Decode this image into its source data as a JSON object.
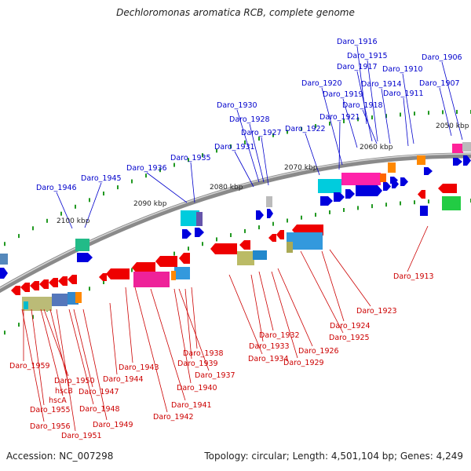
{
  "title": "Dechloromonas aromatica RCB, complete genome",
  "footer": {
    "accession": "Accession: NC_007298",
    "summary": "Topology: circular; Length: 4,501,104 bp; Genes: 4,249"
  },
  "colors": {
    "top_label": "#0000cc",
    "bottom_label": "#cc0000",
    "forward": "#0000dd",
    "reverse": "#ee0000",
    "tick": "#229922",
    "backbone": "#888888"
  },
  "scale": [
    {
      "text": "2050 kbp"
    },
    {
      "text": "2060 kbp"
    },
    {
      "text": "2070 kbp"
    },
    {
      "text": "2080 kbp"
    },
    {
      "text": "2090 kbp"
    },
    {
      "text": "2100 kbp"
    }
  ],
  "top_labels": [
    {
      "text": "Daro_1916"
    },
    {
      "text": "Daro_1915"
    },
    {
      "text": "Daro_1906"
    },
    {
      "text": "Daro_1917"
    },
    {
      "text": "Daro_1910"
    },
    {
      "text": "Daro_1920"
    },
    {
      "text": "Daro_1914"
    },
    {
      "text": "Daro_1907"
    },
    {
      "text": "Daro_1919"
    },
    {
      "text": "Daro_1911"
    },
    {
      "text": "Daro_1918"
    },
    {
      "text": "Daro_1930"
    },
    {
      "text": "Daro_1921"
    },
    {
      "text": "Daro_1928"
    },
    {
      "text": "Daro_1922"
    },
    {
      "text": "Daro_1927"
    },
    {
      "text": "Daro_1931"
    },
    {
      "text": "Daro_1935"
    },
    {
      "text": "Daro_1936"
    },
    {
      "text": "Daro_1945"
    },
    {
      "text": "Daro_1946"
    }
  ],
  "bottom_labels": [
    {
      "text": "Daro_1913"
    },
    {
      "text": "Daro_1923"
    },
    {
      "text": "Daro_1924"
    },
    {
      "text": "Daro_1932"
    },
    {
      "text": "Daro_1925"
    },
    {
      "text": "Daro_1933"
    },
    {
      "text": "Daro_1926"
    },
    {
      "text": "Daro_1938"
    },
    {
      "text": "Daro_1934"
    },
    {
      "text": "Daro_1929"
    },
    {
      "text": "Daro_1939"
    },
    {
      "text": "Daro_1943"
    },
    {
      "text": "Daro_1937"
    },
    {
      "text": "Daro_1959"
    },
    {
      "text": "Daro_1950"
    },
    {
      "text": "Daro_1944"
    },
    {
      "text": "Daro_1940"
    },
    {
      "text": "hscB"
    },
    {
      "text": "Daro_1947"
    },
    {
      "text": "hscA"
    },
    {
      "text": "Daro_1941"
    },
    {
      "text": "Daro_1955"
    },
    {
      "text": "Daro_1948"
    },
    {
      "text": "Daro_1942"
    },
    {
      "text": "Daro_1956"
    },
    {
      "text": "Daro_1949"
    },
    {
      "text": "Daro_1951"
    }
  ]
}
